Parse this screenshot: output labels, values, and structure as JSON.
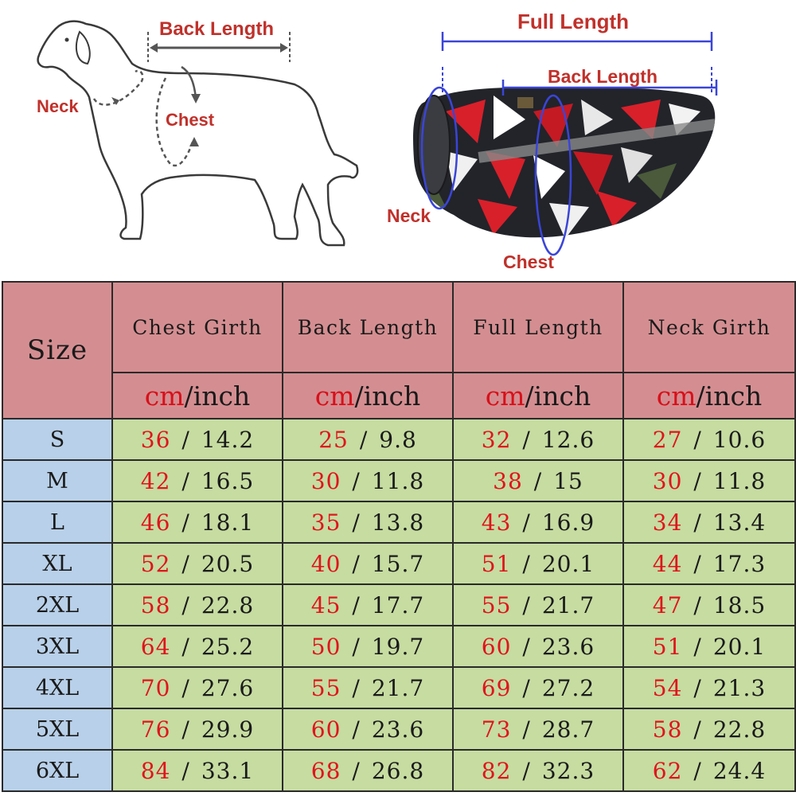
{
  "diagram_left": {
    "back_length_label": "Back Length",
    "neck_label": "Neck",
    "chest_label": "Chest"
  },
  "diagram_right": {
    "full_length_label": "Full Length",
    "back_length_label": "Back Length",
    "neck_label": "Neck",
    "chest_label": "Chest"
  },
  "colors": {
    "label_red": "#c0312b",
    "measure_blue": "#3a45d8",
    "header_bg": "#d48e91",
    "size_bg": "#b8d0e9",
    "value_bg": "#c6dca1",
    "cm_red": "#e0141c"
  },
  "table": {
    "size_header": "Size",
    "columns": [
      {
        "title": "Chest Girth",
        "unit_cm": "cm",
        "unit_inch": "/inch"
      },
      {
        "title": "Back Length",
        "unit_cm": "cm",
        "unit_inch": "/inch"
      },
      {
        "title": "Full Length",
        "unit_cm": "cm",
        "unit_inch": "/inch"
      },
      {
        "title": "Neck Girth",
        "unit_cm": "cm",
        "unit_inch": "/inch"
      }
    ],
    "rows": [
      {
        "size": "S",
        "values": [
          {
            "cm": "36",
            "inch": "14.2"
          },
          {
            "cm": "25",
            "inch": "9.8"
          },
          {
            "cm": "32",
            "inch": "12.6"
          },
          {
            "cm": "27",
            "inch": "10.6"
          }
        ]
      },
      {
        "size": "M",
        "values": [
          {
            "cm": "42",
            "inch": "16.5"
          },
          {
            "cm": "30",
            "inch": "11.8"
          },
          {
            "cm": "38",
            "inch": "15"
          },
          {
            "cm": "30",
            "inch": "11.8"
          }
        ]
      },
      {
        "size": "L",
        "values": [
          {
            "cm": "46",
            "inch": "18.1"
          },
          {
            "cm": "35",
            "inch": "13.8"
          },
          {
            "cm": "43",
            "inch": "16.9"
          },
          {
            "cm": "34",
            "inch": "13.4"
          }
        ]
      },
      {
        "size": "XL",
        "values": [
          {
            "cm": "52",
            "inch": "20.5"
          },
          {
            "cm": "40",
            "inch": "15.7"
          },
          {
            "cm": "51",
            "inch": "20.1"
          },
          {
            "cm": "44",
            "inch": "17.3"
          }
        ]
      },
      {
        "size": "2XL",
        "values": [
          {
            "cm": "58",
            "inch": "22.8"
          },
          {
            "cm": "45",
            "inch": "17.7"
          },
          {
            "cm": "55",
            "inch": "21.7"
          },
          {
            "cm": "47",
            "inch": "18.5"
          }
        ]
      },
      {
        "size": "3XL",
        "values": [
          {
            "cm": "64",
            "inch": "25.2"
          },
          {
            "cm": "50",
            "inch": "19.7"
          },
          {
            "cm": "60",
            "inch": "23.6"
          },
          {
            "cm": "51",
            "inch": "20.1"
          }
        ]
      },
      {
        "size": "4XL",
        "values": [
          {
            "cm": "70",
            "inch": "27.6"
          },
          {
            "cm": "55",
            "inch": "21.7"
          },
          {
            "cm": "69",
            "inch": "27.2"
          },
          {
            "cm": "54",
            "inch": "21.3"
          }
        ]
      },
      {
        "size": "5XL",
        "values": [
          {
            "cm": "76",
            "inch": "29.9"
          },
          {
            "cm": "60",
            "inch": "23.6"
          },
          {
            "cm": "73",
            "inch": "28.7"
          },
          {
            "cm": "58",
            "inch": "22.8"
          }
        ]
      },
      {
        "size": "6XL",
        "values": [
          {
            "cm": "84",
            "inch": "33.1"
          },
          {
            "cm": "68",
            "inch": "26.8"
          },
          {
            "cm": "82",
            "inch": "32.3"
          },
          {
            "cm": "62",
            "inch": "24.4"
          }
        ]
      }
    ]
  }
}
